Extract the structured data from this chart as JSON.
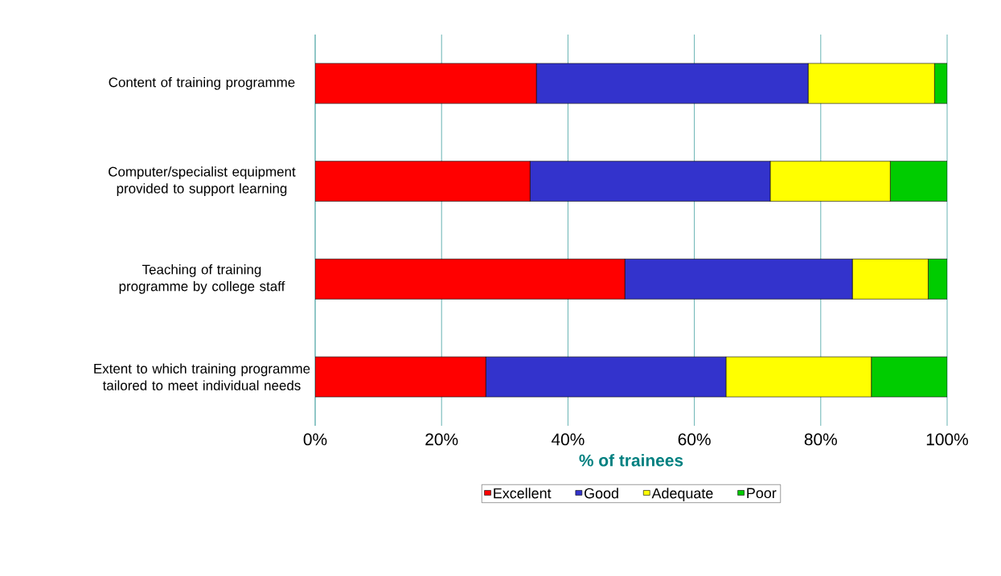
{
  "chart_data": {
    "type": "bar",
    "orientation": "horizontal",
    "stacked": true,
    "categories": [
      "Content of training programme",
      "Computer/specialist equipment provided to support learning",
      "Teaching of training programme by college staff",
      "Extent to which training programme tailored to meet individual needs"
    ],
    "series": [
      {
        "name": "Excellent",
        "color": "#ff0000",
        "values": [
          35,
          34,
          49,
          27
        ]
      },
      {
        "name": "Good",
        "color": "#3333cc",
        "values": [
          43,
          38,
          36,
          38
        ]
      },
      {
        "name": "Adequate",
        "color": "#ffff00",
        "values": [
          20,
          19,
          12,
          23
        ]
      },
      {
        "name": "Poor",
        "color": "#00cc00",
        "values": [
          2,
          9,
          3,
          12
        ]
      }
    ],
    "xlabel": "% of trainees",
    "xlim": [
      0,
      100
    ],
    "xticks": [
      {
        "value": 0,
        "label": "0%"
      },
      {
        "value": 20,
        "label": "20%"
      },
      {
        "value": 40,
        "label": "40%"
      },
      {
        "value": 60,
        "label": "60%"
      },
      {
        "value": 80,
        "label": "80%"
      },
      {
        "value": 100,
        "label": "100%"
      }
    ],
    "grid": "x",
    "legend": "bottom"
  }
}
